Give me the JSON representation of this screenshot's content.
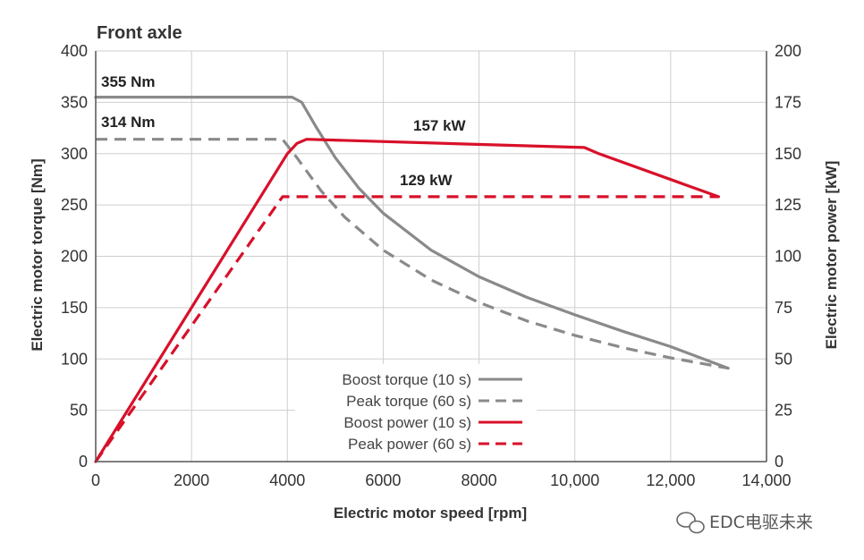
{
  "chart_data": {
    "type": "line",
    "title": "Front axle",
    "xlabel": "Electric motor speed [rpm]",
    "ylabel_left": "Electric motor torque [Nm]",
    "ylabel_right": "Electric motor power [kW]",
    "xlim": [
      0,
      14000
    ],
    "ylim_left": [
      0,
      400
    ],
    "ylim_right": [
      0,
      200
    ],
    "x_ticks": [
      0,
      2000,
      4000,
      6000,
      8000,
      10000,
      12000,
      14000
    ],
    "x_tick_labels": [
      "0",
      "2000",
      "4000",
      "6000",
      "8000",
      "10,000",
      "12,000",
      "14,000"
    ],
    "y_left_ticks": [
      0,
      50,
      100,
      150,
      200,
      250,
      300,
      350,
      400
    ],
    "y_left_tick_labels": [
      "0",
      "50",
      "100",
      "150",
      "200",
      "250",
      "300",
      "350",
      "400"
    ],
    "y_right_ticks": [
      0,
      25,
      50,
      75,
      100,
      125,
      150,
      175,
      200
    ],
    "y_right_tick_labels": [
      "0",
      "25",
      "50",
      "75",
      "100",
      "125",
      "150",
      "175",
      "200"
    ],
    "grid": true,
    "legend_position": "bottom-center",
    "series": [
      {
        "name": "Boost torque (10 s)",
        "axis": "left",
        "color": "#8a8a8a",
        "style": "solid",
        "x": [
          0,
          4100,
          4300,
          4600,
          5000,
          5500,
          6000,
          7000,
          8000,
          9000,
          10000,
          11000,
          12000,
          13200
        ],
        "y": [
          355,
          355,
          350,
          326,
          296,
          266,
          242,
          206,
          180,
          160,
          143,
          127,
          112,
          91
        ]
      },
      {
        "name": "Peak torque (60 s)",
        "axis": "left",
        "color": "#8a8a8a",
        "style": "dashed",
        "x": [
          0,
          3900,
          4200,
          4700,
          5200,
          6000,
          7000,
          8000,
          9000,
          10000,
          11000,
          12000,
          13200
        ],
        "y": [
          314,
          314,
          296,
          264,
          238,
          206,
          177,
          155,
          137,
          123,
          111,
          101,
          91
        ]
      },
      {
        "name": "Boost power (10 s)",
        "axis": "right",
        "color": "#d8102a",
        "style": "solid",
        "x": [
          0,
          4000,
          4200,
          4400,
          10200,
          10500,
          13000
        ],
        "y": [
          0,
          150,
          155,
          157,
          153,
          150,
          129
        ]
      },
      {
        "name": "Peak power (60 s)",
        "axis": "right",
        "color": "#d8102a",
        "style": "dashed",
        "x": [
          0,
          3900,
          13000
        ],
        "y": [
          0,
          129,
          129
        ]
      }
    ],
    "annotations": [
      "355 Nm",
      "314 Nm",
      "157 kW",
      "129 kW"
    ],
    "legend": [
      "Boost torque (10 s)",
      "Peak torque (60 s)",
      "Boost power (10 s)",
      "Peak power (60 s)"
    ]
  },
  "watermark": {
    "text": "EDC电驱未来"
  }
}
